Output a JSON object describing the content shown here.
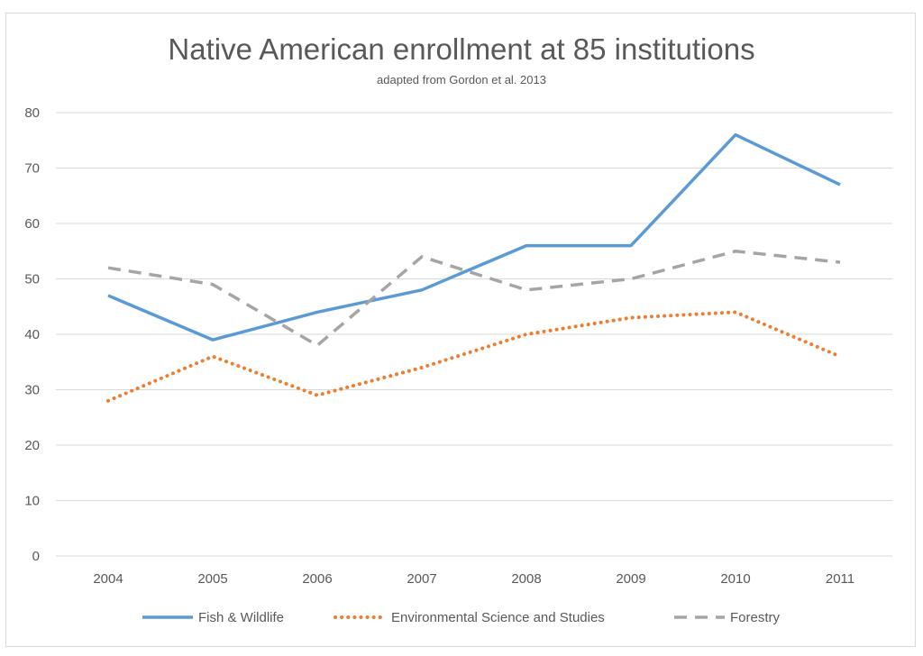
{
  "chart_data": {
    "type": "line",
    "title": "Native American enrollment at 85 institutions",
    "subtitle": "adapted from Gordon et al. 2013",
    "xlabel": "",
    "ylabel": "",
    "categories": [
      "2004",
      "2005",
      "2006",
      "2007",
      "2008",
      "2009",
      "2010",
      "2011"
    ],
    "ylim": [
      0,
      80
    ],
    "yticks": [
      "0",
      "10",
      "20",
      "30",
      "40",
      "50",
      "60",
      "70",
      "80"
    ],
    "grid": true,
    "legend_position": "bottom",
    "series": [
      {
        "name": "Fish & Wildlife",
        "values": [
          47,
          39,
          44,
          48,
          56,
          56,
          76,
          67
        ],
        "color": "#5b9bd5",
        "style": "solid"
      },
      {
        "name": "Environmental Science and Studies",
        "values": [
          28,
          36,
          29,
          34,
          40,
          43,
          44,
          36
        ],
        "color": "#ed7d31",
        "style": "dotted"
      },
      {
        "name": "Forestry",
        "values": [
          52,
          49,
          38,
          54,
          48,
          50,
          55,
          53
        ],
        "color": "#a5a5a5",
        "style": "dashed"
      }
    ]
  }
}
